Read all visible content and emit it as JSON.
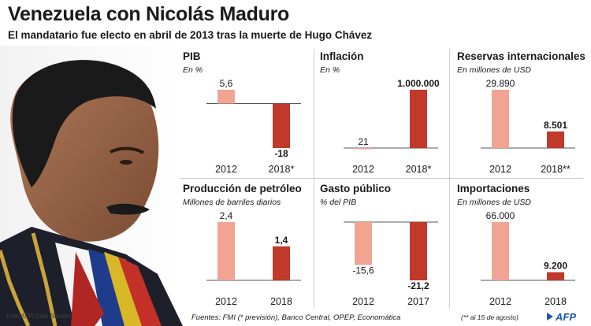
{
  "header": {
    "title": "Venezuela con Nicolás Maduro",
    "subtitle": "El mandatario fue electo en abril de 2013 tras la muerte de Hugo Chávez"
  },
  "photo_credit": "Foto AFP/Juan Barreto",
  "footer": {
    "sources": "Fuentes: FMI (* previsión), Banco Central, OPEP, Economática",
    "footnote": "(** al 15 de agosto)",
    "logo_text": "AFP"
  },
  "colors": {
    "light_bar": "#f0a491",
    "dark_bar": "#c0392b",
    "axis": "#555555",
    "afp_blue": "#1c5aa6"
  },
  "chart_data": [
    {
      "type": "bar",
      "title": "PIB",
      "unit": "En %",
      "categories": [
        "2012",
        "2018*"
      ],
      "values": [
        5.6,
        -18
      ],
      "value_labels": [
        "5,6",
        "-18"
      ],
      "ylim": [
        -18,
        5.6
      ]
    },
    {
      "type": "bar",
      "title": "Inflación",
      "unit": "En %",
      "categories": [
        "2012",
        "2018*"
      ],
      "values": [
        21,
        1000000
      ],
      "value_labels": [
        "21",
        "1.000.000"
      ],
      "ylim": [
        0,
        1000000
      ]
    },
    {
      "type": "bar",
      "title": "Reservas internacionales",
      "unit": "En millones de USD",
      "categories": [
        "2012",
        "2018**"
      ],
      "values": [
        29890,
        8501
      ],
      "value_labels": [
        "29.890",
        "8.501"
      ],
      "ylim": [
        0,
        29890
      ]
    },
    {
      "type": "bar",
      "title": "Producción de petróleo",
      "unit": "Millones de barriles diarios",
      "categories": [
        "2012",
        "2018"
      ],
      "values": [
        2.4,
        1.4
      ],
      "value_labels": [
        "2,4",
        "1,4"
      ],
      "ylim": [
        0,
        2.4
      ]
    },
    {
      "type": "bar",
      "title": "Gasto público",
      "unit": "% del PIB",
      "categories": [
        "2012",
        "2017"
      ],
      "values": [
        -15.6,
        -21.2
      ],
      "value_labels": [
        "-15,6",
        "-21,2"
      ],
      "ylim": [
        -21.2,
        0
      ]
    },
    {
      "type": "bar",
      "title": "Importaciones",
      "unit": "En millones de USD",
      "categories": [
        "2012",
        "2018"
      ],
      "values": [
        66000,
        9200
      ],
      "value_labels": [
        "66.000",
        "9.200"
      ],
      "ylim": [
        0,
        66000
      ]
    }
  ]
}
